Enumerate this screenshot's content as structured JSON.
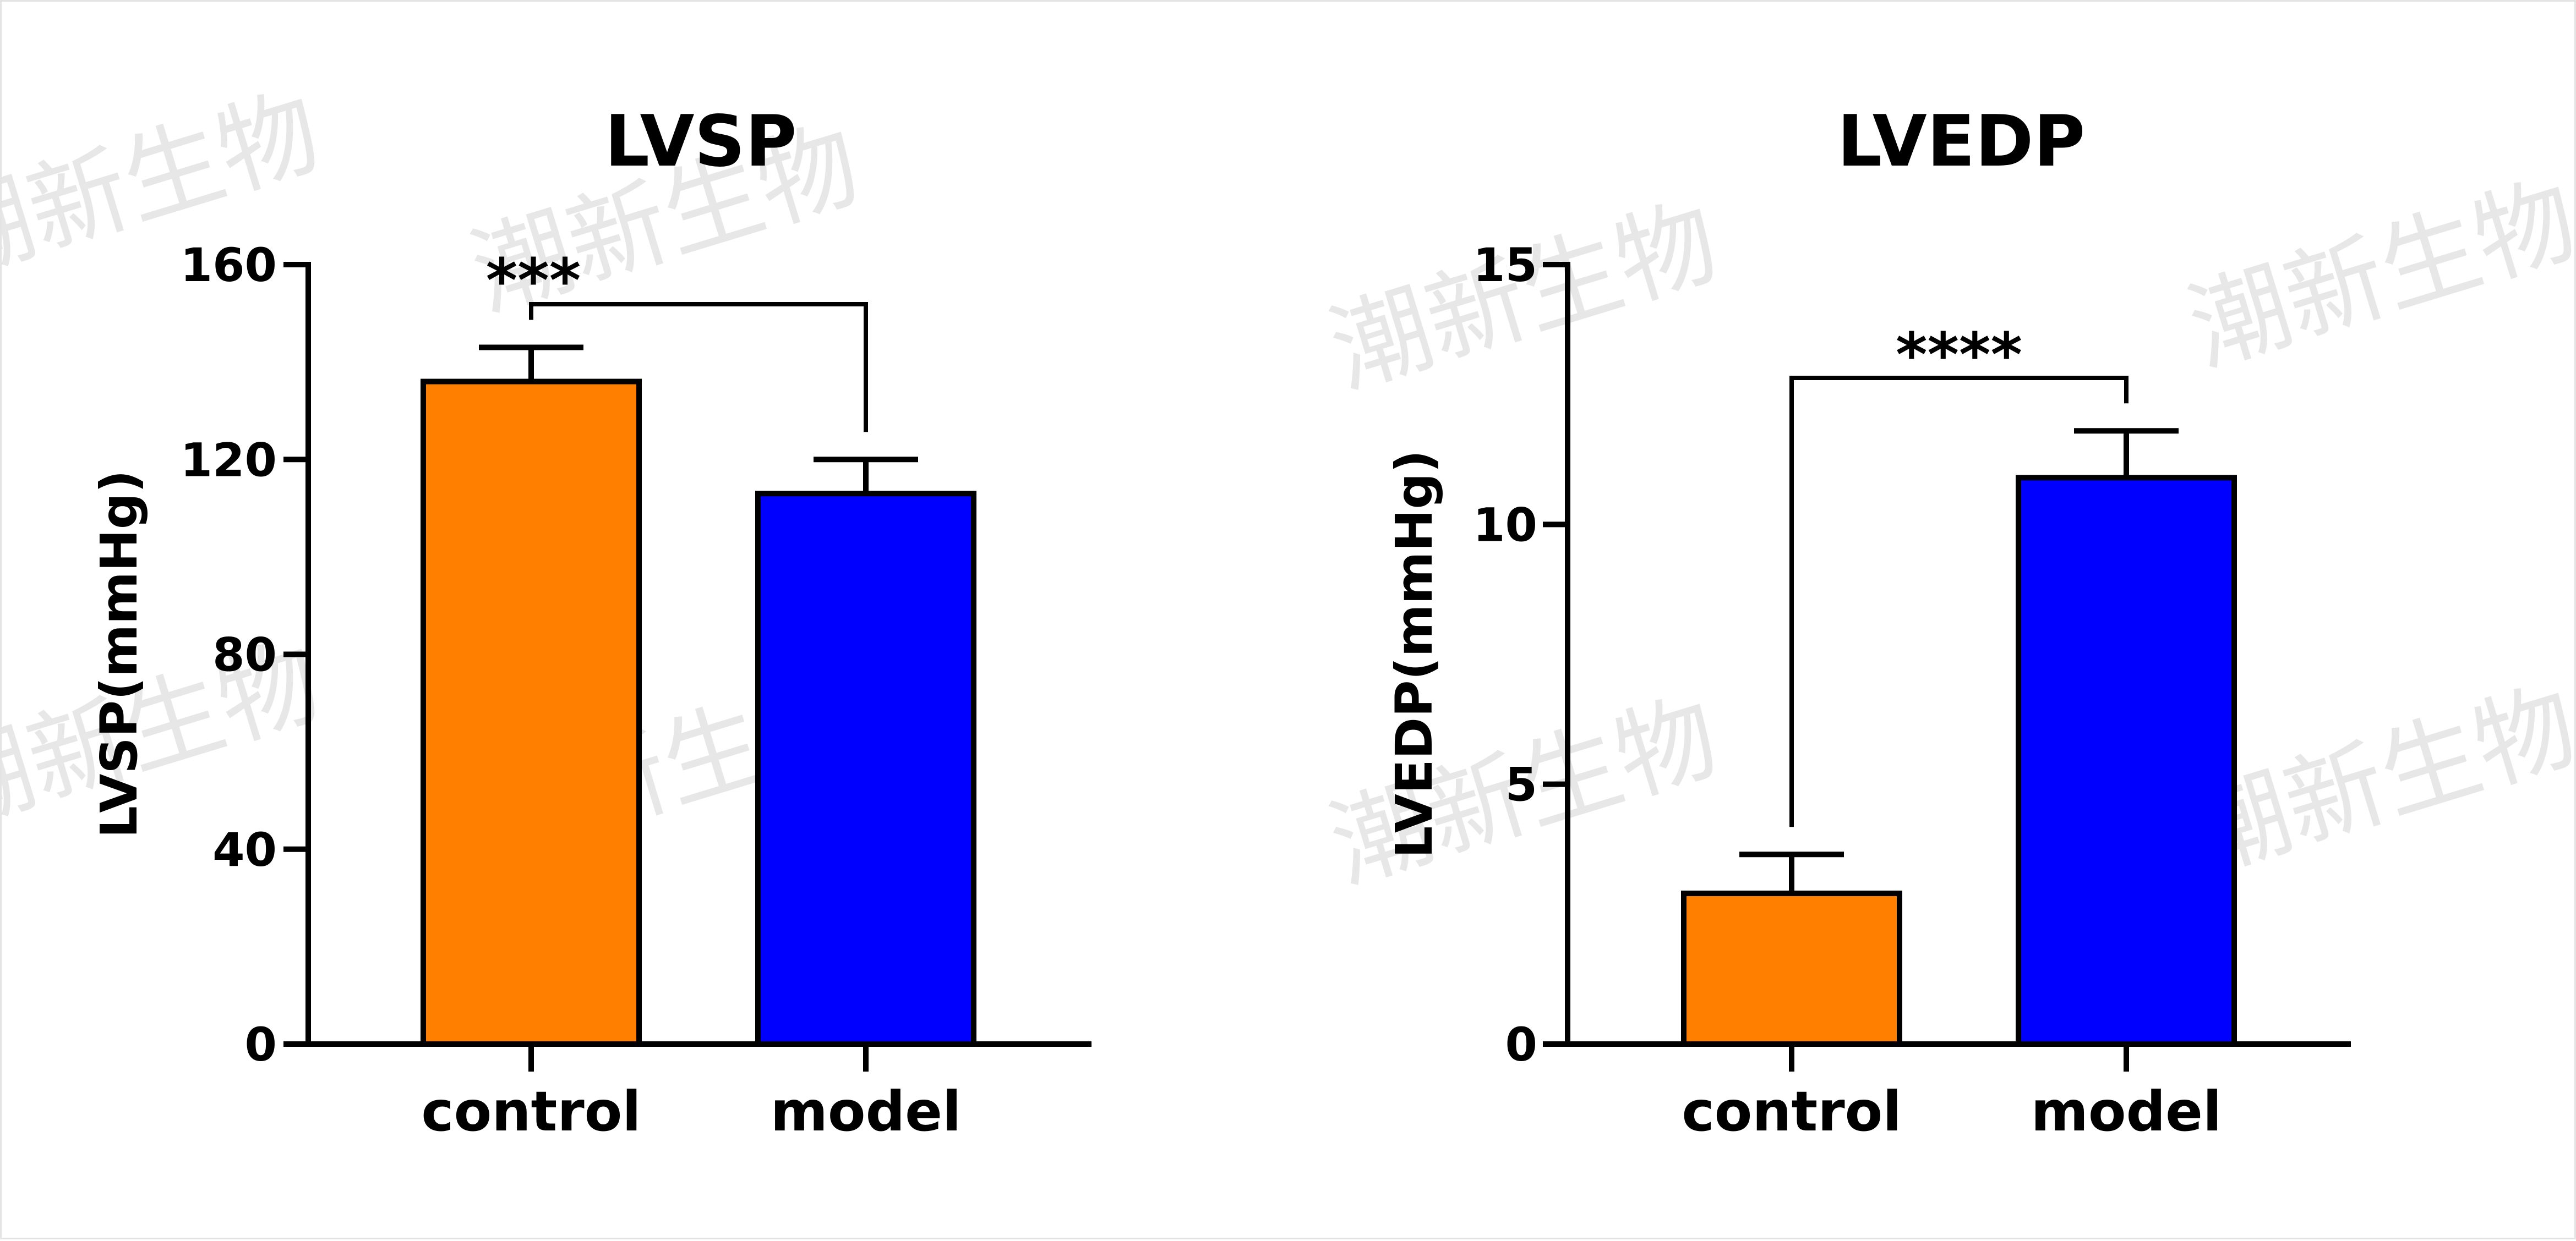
{
  "watermark": {
    "text": "潮新生物"
  },
  "chart_data": [
    {
      "type": "bar",
      "title": "LVSP",
      "ylabel": "LVSP(mmHg)",
      "xlabel": "",
      "categories": [
        "control",
        "model"
      ],
      "values": [
        136,
        113
      ],
      "errors": [
        7,
        7
      ],
      "colors": [
        "#FF8000",
        "#0000FF"
      ],
      "ylim": [
        0,
        160
      ],
      "yticks": [
        0,
        40,
        80,
        120,
        160
      ],
      "ytick_labels": [
        "0",
        "40",
        "80",
        "120",
        "160"
      ],
      "significance": {
        "label": "***",
        "between": [
          "control",
          "model"
        ]
      },
      "grid": false,
      "legend": "none"
    },
    {
      "type": "bar",
      "title": "LVEDP",
      "ylabel": "LVEDP(mmHg)",
      "xlabel": "",
      "categories": [
        "control",
        "model"
      ],
      "values": [
        2.9,
        10.9
      ],
      "errors": [
        0.75,
        0.9
      ],
      "colors": [
        "#FF8000",
        "#0000FF"
      ],
      "ylim": [
        0,
        15
      ],
      "yticks": [
        0,
        5,
        10,
        15
      ],
      "ytick_labels": [
        "0",
        "5",
        "10",
        "15"
      ],
      "significance": {
        "label": "****",
        "between": [
          "control",
          "model"
        ]
      },
      "grid": false,
      "legend": "none"
    }
  ]
}
